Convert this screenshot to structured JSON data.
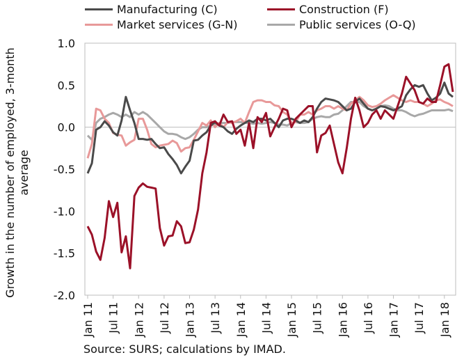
{
  "chart_data": {
    "type": "line",
    "title": "",
    "xlabel": "",
    "ylabel": "Growth in the number of employed, 3-month average",
    "ylim": [
      -2.0,
      1.0
    ],
    "yticks": [
      "1.0",
      "0.5",
      "0.0",
      "-0.5",
      "-1.0",
      "-1.5",
      "-2.0"
    ],
    "xticks": [
      "Jan 11",
      "Jul 11",
      "Jan 12",
      "Jul 12",
      "Jan 13",
      "Jul 13",
      "Jan 14",
      "Jul 14",
      "Jan 15",
      "Jul 15",
      "Jan 16",
      "Jul 16",
      "Jan 17",
      "Jul 17",
      "Jan 18"
    ],
    "x_start": "Jan 11",
    "x_end": "Feb 18",
    "grid": false,
    "legend_position": "top",
    "series": [
      {
        "name": "Manufacturing (C)",
        "color": "#4a4a4a",
        "values": [
          -0.55,
          -0.43,
          -0.03,
          0.0,
          0.07,
          0.02,
          -0.06,
          -0.1,
          0.08,
          0.36,
          0.2,
          0.05,
          -0.14,
          -0.14,
          -0.15,
          -0.14,
          -0.2,
          -0.25,
          -0.24,
          -0.32,
          -0.38,
          -0.45,
          -0.55,
          -0.47,
          -0.4,
          -0.16,
          -0.15,
          -0.1,
          -0.06,
          0.02,
          0.06,
          0.02,
          0.0,
          -0.05,
          -0.08,
          -0.02,
          0.02,
          0.05,
          0.08,
          0.06,
          0.1,
          0.1,
          0.08,
          0.1,
          0.05,
          0.0,
          0.08,
          0.1,
          0.1,
          0.08,
          0.05,
          0.08,
          0.06,
          0.12,
          0.22,
          0.3,
          0.34,
          0.33,
          0.32,
          0.3,
          0.25,
          0.2,
          0.22,
          0.3,
          0.34,
          0.28,
          0.22,
          0.2,
          0.22,
          0.25,
          0.24,
          0.22,
          0.2,
          0.22,
          0.25,
          0.38,
          0.45,
          0.5,
          0.48,
          0.5,
          0.4,
          0.32,
          0.35,
          0.4,
          0.53,
          0.4,
          0.36
        ]
      },
      {
        "name": "Construction (F)",
        "color": "#9b1128",
        "values": [
          -1.18,
          -1.28,
          -1.48,
          -1.58,
          -1.32,
          -0.88,
          -1.07,
          -0.9,
          -1.49,
          -1.3,
          -1.68,
          -0.82,
          -0.72,
          -0.67,
          -0.71,
          -0.72,
          -0.73,
          -1.2,
          -1.41,
          -1.3,
          -1.29,
          -1.12,
          -1.18,
          -1.38,
          -1.37,
          -1.22,
          -0.98,
          -0.55,
          -0.3,
          0.05,
          0.07,
          0.02,
          0.15,
          0.06,
          0.07,
          -0.08,
          -0.03,
          -0.22,
          0.05,
          -0.25,
          0.12,
          0.06,
          0.17,
          -0.11,
          0.0,
          0.1,
          0.22,
          0.2,
          0.0,
          0.1,
          0.15,
          0.2,
          0.25,
          0.25,
          -0.3,
          -0.1,
          -0.07,
          0.02,
          -0.2,
          -0.42,
          -0.55,
          -0.25,
          0.1,
          0.35,
          0.2,
          0.0,
          0.05,
          0.15,
          0.2,
          0.1,
          0.2,
          0.15,
          0.1,
          0.25,
          0.4,
          0.6,
          0.52,
          0.44,
          0.3,
          0.28,
          0.34,
          0.3,
          0.3,
          0.5,
          0.72,
          0.75,
          0.42
        ]
      },
      {
        "name": "Market services (G-N)",
        "color": "#e89999",
        "values": [
          -0.37,
          -0.2,
          0.22,
          0.2,
          0.1,
          0.05,
          -0.07,
          -0.09,
          -0.1,
          -0.22,
          -0.18,
          -0.15,
          0.1,
          0.1,
          -0.03,
          -0.2,
          -0.24,
          -0.22,
          -0.21,
          -0.2,
          -0.16,
          -0.19,
          -0.29,
          -0.25,
          -0.24,
          -0.15,
          -0.05,
          0.05,
          0.02,
          0.08,
          0.0,
          0.05,
          0.0,
          0.06,
          0.05,
          0.07,
          0.1,
          0.05,
          0.18,
          0.3,
          0.32,
          0.32,
          0.3,
          0.3,
          0.26,
          0.25,
          0.18,
          0.15,
          0.05,
          0.06,
          0.15,
          0.15,
          0.18,
          0.15,
          0.2,
          0.22,
          0.25,
          0.25,
          0.22,
          0.25,
          0.22,
          0.2,
          0.28,
          0.32,
          0.36,
          0.32,
          0.26,
          0.24,
          0.25,
          0.28,
          0.32,
          0.35,
          0.38,
          0.35,
          0.32,
          0.3,
          0.32,
          0.3,
          0.3,
          0.28,
          0.25,
          0.28,
          0.32,
          0.33,
          0.3,
          0.28,
          0.25
        ]
      },
      {
        "name": "Public services (O-Q)",
        "color": "#a8a8a8",
        "values": [
          -0.1,
          -0.15,
          0.05,
          0.1,
          0.12,
          0.15,
          0.17,
          0.15,
          0.12,
          0.15,
          0.12,
          0.18,
          0.15,
          0.18,
          0.15,
          0.1,
          0.05,
          0.0,
          -0.05,
          -0.08,
          -0.08,
          -0.09,
          -0.12,
          -0.14,
          -0.12,
          -0.08,
          -0.03,
          0.0,
          0.0,
          0.02,
          0.03,
          0.05,
          0.05,
          0.05,
          0.06,
          0.06,
          0.06,
          0.05,
          0.05,
          0.04,
          0.05,
          0.04,
          0.05,
          0.06,
          0.05,
          0.03,
          0.03,
          0.02,
          0.05,
          0.06,
          0.05,
          0.05,
          0.06,
          0.1,
          0.12,
          0.13,
          0.12,
          0.12,
          0.15,
          0.16,
          0.2,
          0.25,
          0.3,
          0.3,
          0.3,
          0.25,
          0.22,
          0.2,
          0.22,
          0.25,
          0.26,
          0.25,
          0.22,
          0.2,
          0.2,
          0.18,
          0.15,
          0.13,
          0.15,
          0.16,
          0.18,
          0.2,
          0.2,
          0.2,
          0.2,
          0.21,
          0.19
        ]
      }
    ]
  },
  "source": "Source: SURS; calculations by IMAD."
}
